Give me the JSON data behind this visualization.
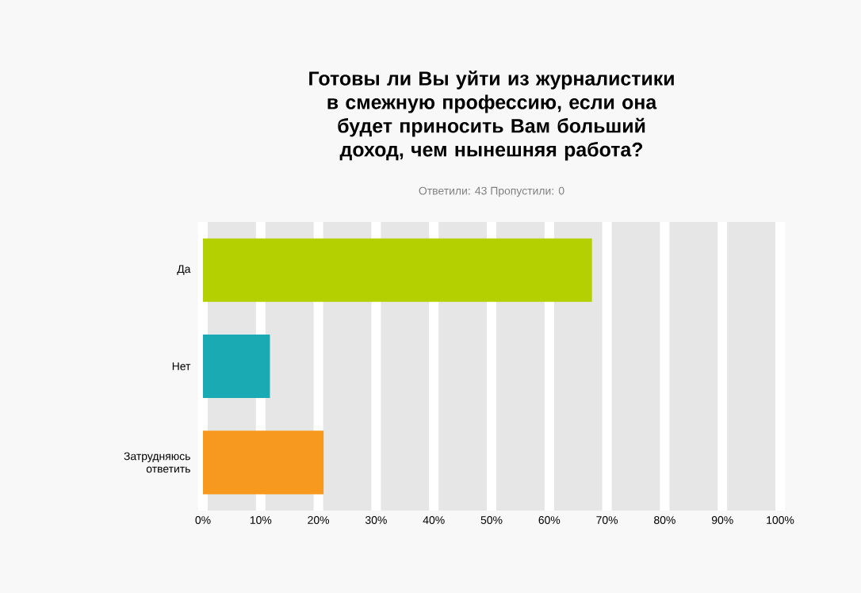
{
  "chart_data": {
    "type": "bar",
    "orientation": "horizontal",
    "title": "Готовы ли Вы уйти из журналистики в смежную профессию, если она будет приносить Вам больший доход, чем нынешняя работа?",
    "subtitle": "Ответили: 43   Пропустили: 0",
    "categories": [
      "Да",
      "Нет",
      "Затрудняюсь ответить"
    ],
    "values": [
      67.4,
      11.6,
      20.9
    ],
    "colors": [
      "#b5d000",
      "#1aaab3",
      "#f7991e"
    ],
    "xlim": [
      0,
      100
    ],
    "xticks": [
      {
        "value": 0,
        "label": "0%"
      },
      {
        "value": 10,
        "label": "10%"
      },
      {
        "value": 20,
        "label": "20%"
      },
      {
        "value": 30,
        "label": "30%"
      },
      {
        "value": 40,
        "label": "40%"
      },
      {
        "value": 50,
        "label": "50%"
      },
      {
        "value": 60,
        "label": "60%"
      },
      {
        "value": 70,
        "label": "70%"
      },
      {
        "value": 80,
        "label": "80%"
      },
      {
        "value": 90,
        "label": "90%"
      },
      {
        "value": 100,
        "label": "100%"
      }
    ],
    "grid": "x"
  }
}
